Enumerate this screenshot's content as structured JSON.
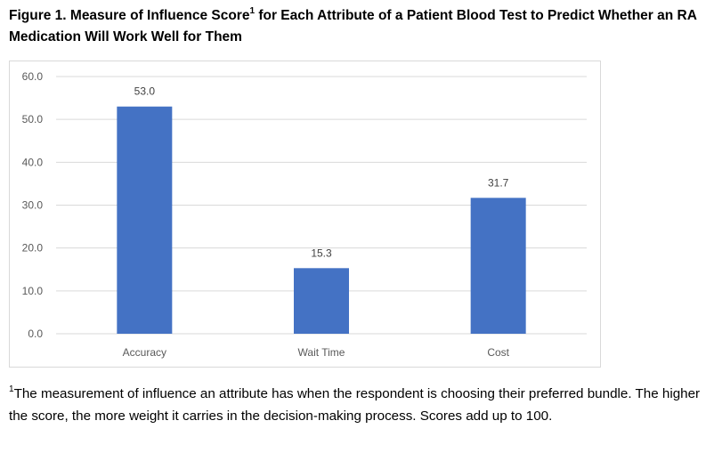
{
  "title": {
    "before_sup": "Figure 1. Measure of Influence Score",
    "sup": "1",
    "after_sup": " for Each Attribute of a Patient Blood Test to Predict Whether an RA Medication Will Work Well for Them"
  },
  "footnote": {
    "sup": "1",
    "text": "The measurement of influence an attribute has when the respondent is choosing their preferred bundle. The higher the score, the more weight it carries in the decision-making process. Scores add up to 100."
  },
  "colors": {
    "bar": "#4472C4",
    "grid": "#d9d9d9"
  },
  "chart_data": {
    "type": "bar",
    "categories": [
      "Accuracy",
      "Wait Time",
      "Cost"
    ],
    "values": [
      53.0,
      15.3,
      31.7
    ],
    "value_labels": [
      "53.0",
      "15.3",
      "31.7"
    ],
    "yticks": [
      "0.0",
      "10.0",
      "20.0",
      "30.0",
      "40.0",
      "50.0",
      "60.0"
    ],
    "ylim": [
      0,
      60
    ],
    "grid": true,
    "xlabel": "",
    "ylabel": ""
  }
}
